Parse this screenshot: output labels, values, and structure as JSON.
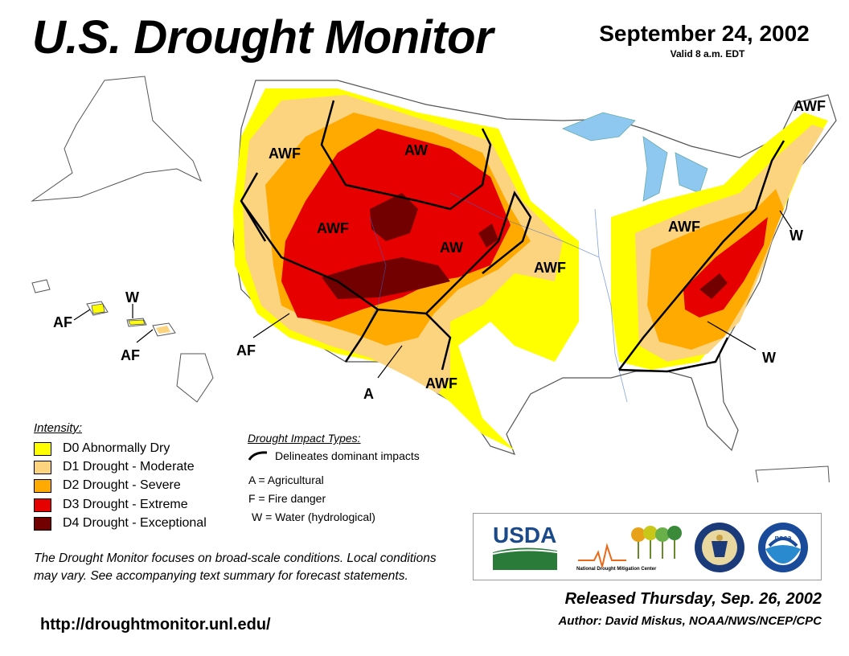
{
  "header": {
    "title": "U.S. Drought Monitor",
    "date": "September 24, 2002",
    "valid": "Valid 8 a.m. EDT"
  },
  "map": {
    "labels": {
      "awf_pacnw": "AWF",
      "aw_north": "AW",
      "awf_greatbasin": "AWF",
      "aw_plains": "AW",
      "awf_midwest": "AWF",
      "awf_ohio": "AWF",
      "awf_newengland": "AWF",
      "w_northeast": "W",
      "w_southeast": "W",
      "af_southwest": "AF",
      "a_texas": "A",
      "awf_texas": "AWF",
      "af_hawaii_1": "AF",
      "w_hawaii": "W",
      "af_hawaii_2": "AF"
    },
    "colors": {
      "water": "#8ec8f0",
      "land": "#ffffff",
      "borders": "#aaaaaa"
    }
  },
  "legend": {
    "title": "Intensity:",
    "items": [
      {
        "label": "D0 Abnormally Dry",
        "color": "#ffff00"
      },
      {
        "label": "D1 Drought - Moderate",
        "color": "#fcd37f"
      },
      {
        "label": "D2 Drought - Severe",
        "color": "#ffaa00"
      },
      {
        "label": "D3 Drought - Extreme",
        "color": "#e60000"
      },
      {
        "label": "D4 Drought - Exceptional",
        "color": "#730000"
      }
    ]
  },
  "impacts": {
    "title": "Drought Impact Types:",
    "line_label": "Delineates dominant impacts",
    "codes": [
      "A = Agricultural",
      "F = Fire danger",
      "W = Water (hydrological)"
    ]
  },
  "note": "The Drought Monitor focuses on broad-scale conditions. Local conditions may vary. See accompanying text summary for forecast statements.",
  "url": "http://droughtmonitor.unl.edu/",
  "logos": {
    "usda": "USDA",
    "ndmc": "National Drought Mitigation Center",
    "noaa": "noaa"
  },
  "footer": {
    "released": "Released Thursday, Sep. 26, 2002",
    "author": "Author: David Miskus, NOAA/NWS/NCEP/CPC"
  }
}
